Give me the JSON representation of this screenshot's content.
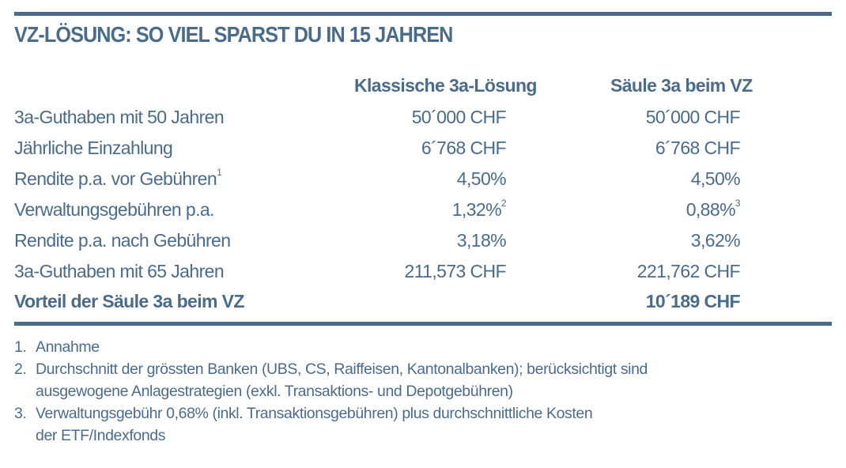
{
  "title": "VZ-LÖSUNG: SO VIEL SPARST DU IN 15 JAHREN",
  "columns": [
    "Klassische 3a-Lösung",
    "Säule 3a beim VZ"
  ],
  "rows": [
    {
      "label": "3a-Guthaben mit 50 Jahren",
      "label_sup": "",
      "v1": "50´000 CHF",
      "v1_sup": "",
      "v2": "50´000 CHF",
      "v2_sup": ""
    },
    {
      "label": "Jährliche Einzahlung",
      "label_sup": "",
      "v1": "6´768 CHF",
      "v1_sup": "",
      "v2": "6´768 CHF",
      "v2_sup": ""
    },
    {
      "label": "Rendite p.a. vor Gebühren",
      "label_sup": "1",
      "v1": "4,50%",
      "v1_sup": "",
      "v2": "4,50%",
      "v2_sup": ""
    },
    {
      "label": "Verwaltungsgebühren p.a.",
      "label_sup": "",
      "v1": "1,32%",
      "v1_sup": "2",
      "v2": "0,88%",
      "v2_sup": "3"
    },
    {
      "label": "Rendite p.a. nach Gebühren",
      "label_sup": "",
      "v1": "3,18%",
      "v1_sup": "",
      "v2": "3,62%",
      "v2_sup": ""
    },
    {
      "label": "3a-Guthaben mit 65 Jahren",
      "label_sup": "",
      "v1": "211,573 CHF",
      "v1_sup": "",
      "v2": "221,762 CHF",
      "v2_sup": ""
    }
  ],
  "total": {
    "label": "Vorteil der Säule 3a beim VZ",
    "value": "10´189 CHF"
  },
  "footnotes": [
    {
      "num": "1.",
      "lines": [
        "Annahme"
      ]
    },
    {
      "num": "2.",
      "lines": [
        "Durchschnitt der grössten Banken (UBS, CS, Raiffeisen, Kantonalbanken); berücksichtigt sind",
        "ausgewogene Anlagestrategien (exkl. Transaktions- und Depotgebühren)"
      ]
    },
    {
      "num": "3.",
      "lines": [
        "Verwaltungsgebühr 0,68% (inkl. Transaktionsgebühren) plus durchschnittliche Kosten",
        "der ETF/Indexfonds"
      ]
    }
  ]
}
